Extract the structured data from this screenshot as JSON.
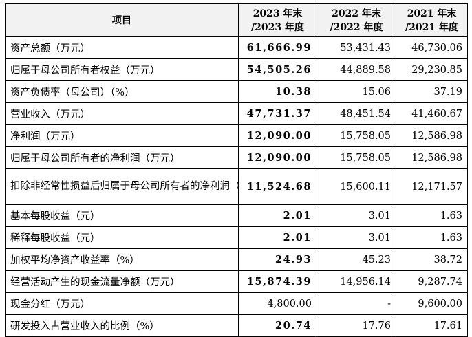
{
  "table": {
    "headers": {
      "item": "项目",
      "y2023_line1": "2023 年末",
      "y2023_line2": "/2023 年度",
      "y2022_line1": "2022 年末",
      "y2022_line2": "/2022 年度",
      "y2021_line1": "2021 年末",
      "y2021_line2": "/2021 年度"
    },
    "rows": [
      {
        "item": "资产总额（万元）",
        "v2023": "61,666.99",
        "v2022": "53,431.43",
        "v2021": "46,730.06"
      },
      {
        "item": "归属于母公司所有者权益（万元）",
        "v2023": "54,505.26",
        "v2022": "44,889.58",
        "v2021": "29,230.85"
      },
      {
        "item": "资产负债率（母公司）（%）",
        "v2023": "10.38",
        "v2022": "15.06",
        "v2021": "37.19"
      },
      {
        "item": "营业收入（万元）",
        "v2023": "47,731.37",
        "v2022": "48,451.54",
        "v2021": "41,460.67"
      },
      {
        "item": "净利润（万元）",
        "v2023": "12,090.00",
        "v2022": "15,758.05",
        "v2021": "12,586.98"
      },
      {
        "item": "归属于母公司所有者的净利润（万元）",
        "v2023": "12,090.00",
        "v2022": "15,758.05",
        "v2021": "12,586.98"
      },
      {
        "item": "扣除非经常性损益后归属于母公司所有者的净利润（万元）",
        "v2023": "11,524.68",
        "v2022": "15,600.11",
        "v2021": "12,171.57"
      },
      {
        "item": "基本每股收益（元）",
        "v2023": "2.01",
        "v2022": "3.01",
        "v2021": "1.63"
      },
      {
        "item": "稀释每股收益（元）",
        "v2023": "2.01",
        "v2022": "3.01",
        "v2021": "1.63"
      },
      {
        "item": "加权平均净资产收益率（%）",
        "v2023": "24.93",
        "v2022": "45.23",
        "v2021": "38.72"
      },
      {
        "item": "经营活动产生的现金流量净额（万元）",
        "v2023": "15,874.39",
        "v2022": "14,956.14",
        "v2021": "9,287.74"
      },
      {
        "item": "现金分红（万元）",
        "v2023": "4,800.00",
        "v2022": "-",
        "v2021": "9,600.00"
      },
      {
        "item": "研发投入占营业收入的比例（%）",
        "v2023": "20.74",
        "v2022": "17.76",
        "v2021": "17.61"
      }
    ]
  }
}
